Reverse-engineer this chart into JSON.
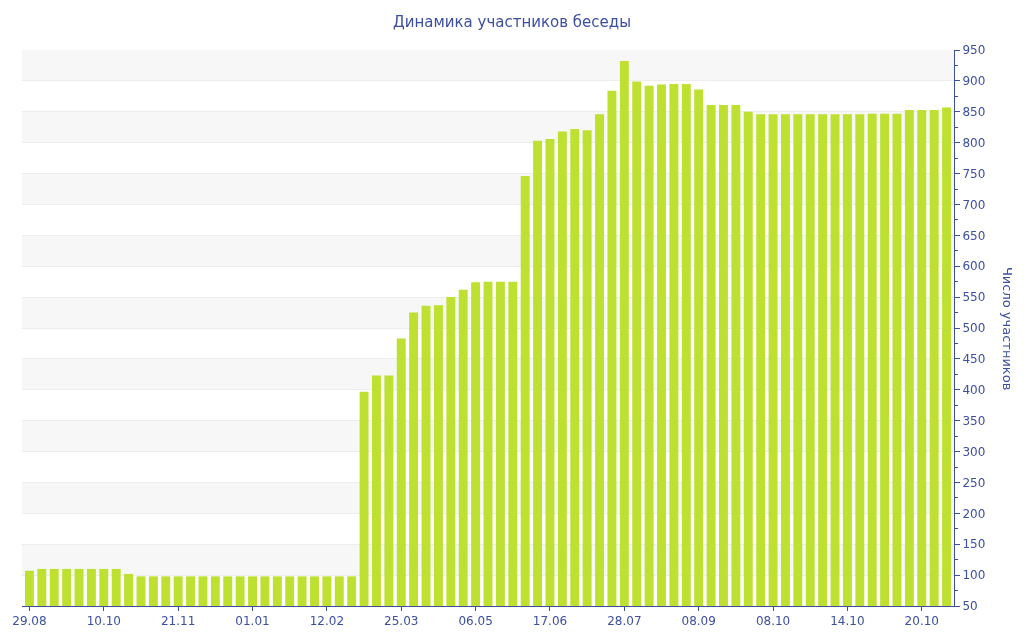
{
  "chart_data": {
    "type": "bar",
    "title": "Динамика участников беседы",
    "ylabel": "Число участников",
    "categories": [
      "29.08",
      null,
      null,
      null,
      null,
      null,
      "10.10",
      null,
      null,
      null,
      null,
      null,
      "21.11",
      null,
      null,
      null,
      null,
      null,
      "01.01",
      null,
      null,
      null,
      null,
      null,
      "12.02",
      null,
      null,
      null,
      null,
      null,
      "25.03",
      null,
      null,
      null,
      null,
      null,
      "06.05",
      null,
      null,
      null,
      null,
      null,
      "17.06",
      null,
      null,
      null,
      null,
      null,
      "28.07",
      null,
      null,
      null,
      null,
      null,
      "08.09",
      null,
      null,
      null,
      null,
      null,
      "08.10",
      null,
      null,
      null,
      null,
      null,
      "14.10",
      null,
      null,
      null,
      null,
      null,
      "20.10",
      null,
      null
    ],
    "values": [
      107,
      110,
      110,
      110,
      110,
      110,
      110,
      110,
      102,
      98,
      98,
      98,
      98,
      98,
      98,
      98,
      98,
      98,
      98,
      98,
      98,
      98,
      98,
      98,
      98,
      98,
      98,
      397,
      423,
      423,
      483,
      525,
      536,
      537,
      550,
      562,
      574,
      575,
      575,
      575,
      746,
      803,
      806,
      818,
      822,
      820,
      846,
      884,
      932,
      899,
      892,
      894,
      895,
      895,
      886,
      861,
      861,
      861,
      850,
      846,
      846,
      846,
      846,
      846,
      846,
      846,
      846,
      846,
      847,
      847,
      847,
      853,
      853,
      853,
      857
    ],
    "color": "#bde031",
    "ylim": [
      50,
      950
    ],
    "yticks": [
      50,
      100,
      150,
      200,
      250,
      300,
      350,
      400,
      450,
      500,
      550,
      600,
      650,
      700,
      750,
      800,
      850,
      900,
      950
    ],
    "grid": "y",
    "legend": false
  }
}
